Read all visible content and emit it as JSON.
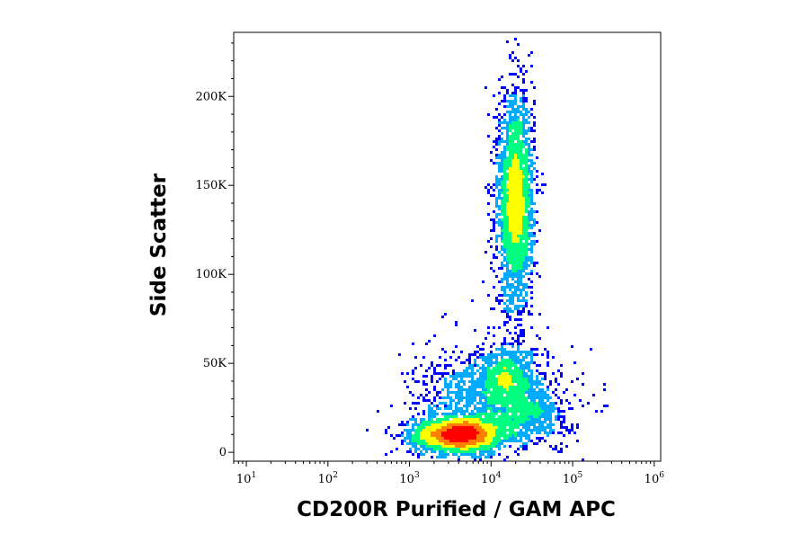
{
  "chart_data": {
    "type": "scatter",
    "style": "density-colored flow cytometry dot plot",
    "title": "",
    "xlabel": "CD200R Purified / GAM APC",
    "ylabel": "Side Scatter",
    "x_scale": "log",
    "xlim": [
      7,
      1200000
    ],
    "ylim": [
      -5000,
      236000
    ],
    "x_ticks": [
      {
        "base": "10",
        "exp": "1",
        "value": 10
      },
      {
        "base": "10",
        "exp": "2",
        "value": 100
      },
      {
        "base": "10",
        "exp": "3",
        "value": 1000
      },
      {
        "base": "10",
        "exp": "4",
        "value": 10000
      },
      {
        "base": "10",
        "exp": "5",
        "value": 100000
      },
      {
        "base": "10",
        "exp": "6",
        "value": 1000000
      }
    ],
    "y_ticks": [
      {
        "label": "0",
        "value": 0
      },
      {
        "label": "50K",
        "value": 50000
      },
      {
        "label": "100K",
        "value": 100000
      },
      {
        "label": "150K",
        "value": 150000
      },
      {
        "label": "200K",
        "value": 200000
      }
    ],
    "grid": false,
    "legend": "none",
    "colormap": [
      "#0000ff",
      "#00aaff",
      "#00ff80",
      "#ffff00",
      "#ff8000",
      "#ff0000"
    ],
    "populations": [
      {
        "x_center": 4000,
        "y_center": 10000,
        "x_log_sd": 0.28,
        "y_sd": 5000,
        "events": 2400
      },
      {
        "x_center": 20000,
        "y_center": 140000,
        "x_log_sd": 0.11,
        "y_sd": 30000,
        "events": 2600
      },
      {
        "x_center": 15000,
        "y_center": 42000,
        "x_log_sd": 0.18,
        "y_sd": 9000,
        "events": 700
      },
      {
        "x_center": 9000,
        "y_center": 28000,
        "x_log_sd": 0.45,
        "y_sd": 15000,
        "events": 1100
      },
      {
        "x_center": 30000,
        "y_center": 22000,
        "x_log_sd": 0.25,
        "y_sd": 9000,
        "events": 450
      }
    ]
  }
}
